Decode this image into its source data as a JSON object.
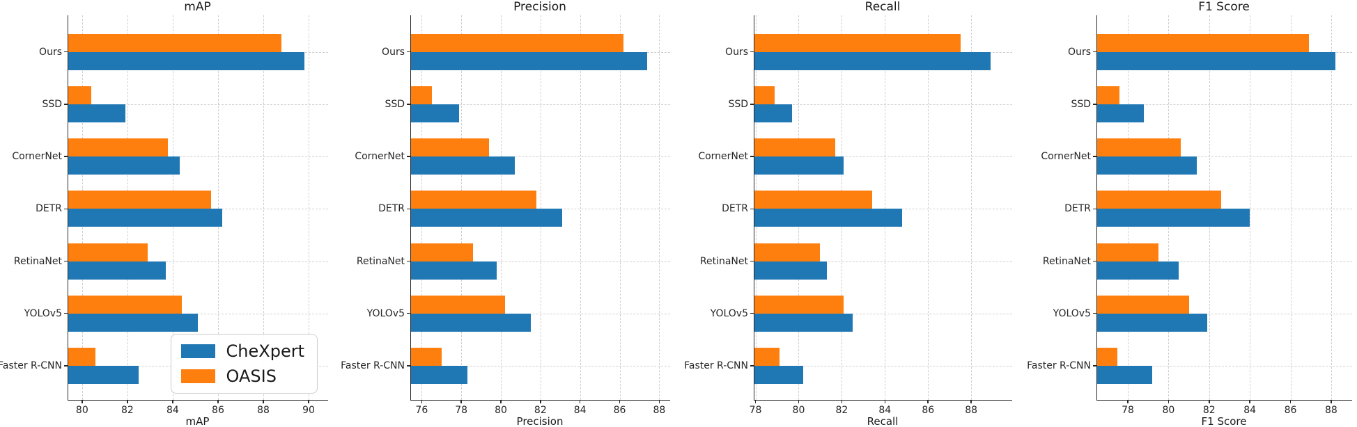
{
  "figure": {
    "background": "#ffffff",
    "grid_color": "#cfcfcf",
    "spine_color": "#262626",
    "series_colors": {
      "CheXpert": "#1f77b4",
      "OASIS": "#ff7f0e"
    }
  },
  "legend": {
    "location": "lower right of first subplot",
    "entries": [
      {
        "label": "CheXpert",
        "color": "#1f77b4"
      },
      {
        "label": "OASIS",
        "color": "#ff7f0e"
      }
    ]
  },
  "chart_data": [
    {
      "type": "bar",
      "orientation": "horizontal",
      "title": "mAP",
      "xlabel": "mAP",
      "xlim": [
        79.39,
        90.86
      ],
      "xticks": [
        80,
        82,
        84,
        86,
        88,
        90
      ],
      "grid": true,
      "legend_position": "lower right",
      "categories": [
        "Ours",
        "SSD",
        "CornerNet",
        "DETR",
        "RetinaNet",
        "YOLOv5",
        "Faster R-CNN"
      ],
      "series": [
        {
          "name": "CheXpert",
          "color": "#1f77b4",
          "values": [
            89.8,
            81.9,
            84.3,
            86.2,
            83.7,
            85.1,
            82.5
          ]
        },
        {
          "name": "OASIS",
          "color": "#ff7f0e",
          "values": [
            88.8,
            80.4,
            83.8,
            85.7,
            82.9,
            84.4,
            80.6
          ]
        }
      ]
    },
    {
      "type": "bar",
      "orientation": "horizontal",
      "title": "Precision",
      "xlabel": "Precision",
      "xlim": [
        75.46,
        88.55
      ],
      "xticks": [
        76,
        78,
        80,
        82,
        84,
        86,
        88
      ],
      "grid": true,
      "categories": [
        "Ours",
        "SSD",
        "CornerNet",
        "DETR",
        "RetinaNet",
        "YOLOv5",
        "Faster R-CNN"
      ],
      "series": [
        {
          "name": "CheXpert",
          "color": "#1f77b4",
          "values": [
            87.4,
            77.9,
            80.7,
            83.1,
            79.8,
            81.5,
            78.3
          ]
        },
        {
          "name": "OASIS",
          "color": "#ff7f0e",
          "values": [
            86.2,
            76.5,
            79.4,
            81.8,
            78.6,
            80.2,
            77.0
          ]
        }
      ]
    },
    {
      "type": "bar",
      "orientation": "horizontal",
      "title": "Recall",
      "xlabel": "Recall",
      "xlim": [
        77.95,
        89.9
      ],
      "xticks": [
        78,
        80,
        82,
        84,
        86,
        88
      ],
      "grid": true,
      "categories": [
        "Ours",
        "SSD",
        "CornerNet",
        "DETR",
        "RetinaNet",
        "YOLOv5",
        "Faster R-CNN"
      ],
      "series": [
        {
          "name": "CheXpert",
          "color": "#1f77b4",
          "values": [
            88.9,
            79.7,
            82.1,
            84.8,
            81.3,
            82.5,
            80.2
          ]
        },
        {
          "name": "OASIS",
          "color": "#ff7f0e",
          "values": [
            87.5,
            78.9,
            81.7,
            83.4,
            81.0,
            82.1,
            79.1
          ]
        }
      ]
    },
    {
      "type": "bar",
      "orientation": "horizontal",
      "title": "F1 Score",
      "xlabel": "F1 Score",
      "xlim": [
        76.49,
        89.03
      ],
      "xticks": [
        78,
        80,
        82,
        84,
        86,
        88
      ],
      "grid": true,
      "categories": [
        "Ours",
        "SSD",
        "CornerNet",
        "DETR",
        "RetinaNet",
        "YOLOv5",
        "Faster R-CNN"
      ],
      "series": [
        {
          "name": "CheXpert",
          "color": "#1f77b4",
          "values": [
            88.2,
            78.8,
            81.4,
            84.0,
            80.5,
            81.9,
            79.2
          ]
        },
        {
          "name": "OASIS",
          "color": "#ff7f0e",
          "values": [
            86.9,
            77.6,
            80.6,
            82.6,
            79.5,
            81.0,
            77.5
          ]
        }
      ]
    }
  ]
}
